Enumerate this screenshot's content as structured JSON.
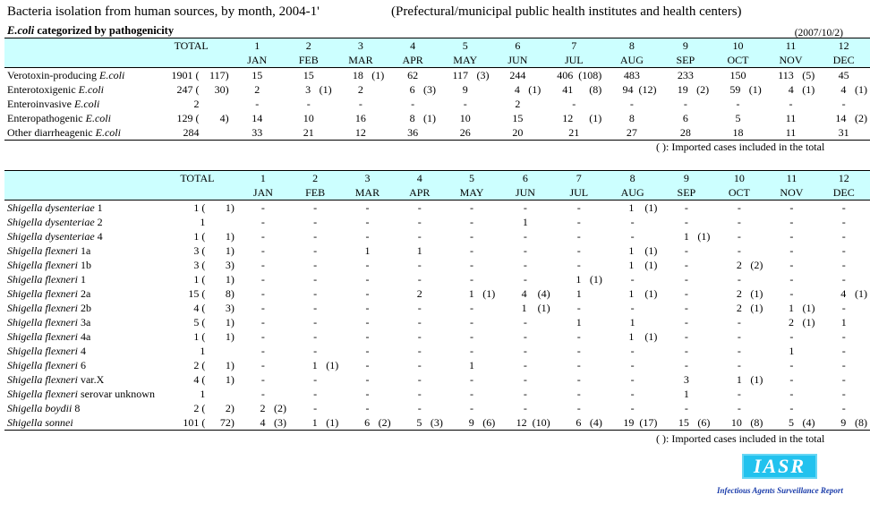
{
  "title": "Bacteria isolation from human sources, by month, 2004-1'",
  "subtitle": "(Prefectural/municipal public health institutes and health centers)",
  "ecoli_heading": {
    "italic": "E.coli",
    "rest": " categorized by pathogenicity"
  },
  "date": "(2007/10/2)",
  "header": {
    "total": "TOTAL",
    "months": [
      {
        "num": "1",
        "abbr": "JAN"
      },
      {
        "num": "2",
        "abbr": "FEB"
      },
      {
        "num": "3",
        "abbr": "MAR"
      },
      {
        "num": "4",
        "abbr": "APR"
      },
      {
        "num": "5",
        "abbr": "MAY"
      },
      {
        "num": "6",
        "abbr": "JUN"
      },
      {
        "num": "7",
        "abbr": "JUL"
      },
      {
        "num": "8",
        "abbr": "AUG"
      },
      {
        "num": "9",
        "abbr": "SEP"
      },
      {
        "num": "10",
        "abbr": "OCT"
      },
      {
        "num": "11",
        "abbr": "NOV"
      },
      {
        "num": "12",
        "abbr": "DEC"
      }
    ]
  },
  "ecoli_rows": [
    {
      "plain": "Verotoxin-producing ",
      "italic": "E.coli",
      "total": "1901",
      "imp": "117",
      "cells": [
        [
          "15",
          ""
        ],
        [
          "15",
          ""
        ],
        [
          "18",
          "1"
        ],
        [
          "62",
          ""
        ],
        [
          "117",
          "3"
        ],
        [
          "244",
          ""
        ],
        [
          "406",
          "108"
        ],
        [
          "483",
          ""
        ],
        [
          "233",
          ""
        ],
        [
          "150",
          ""
        ],
        [
          "113",
          "5"
        ],
        [
          "45",
          ""
        ]
      ]
    },
    {
      "plain": "Enterotoxigenic ",
      "italic": "E.coli",
      "total": "247",
      "imp": "30",
      "cells": [
        [
          "2",
          ""
        ],
        [
          "3",
          "1"
        ],
        [
          "2",
          ""
        ],
        [
          "6",
          "3"
        ],
        [
          "9",
          ""
        ],
        [
          "4",
          "1"
        ],
        [
          "41",
          "8"
        ],
        [
          "94",
          "12"
        ],
        [
          "19",
          "2"
        ],
        [
          "59",
          "1"
        ],
        [
          "4",
          "1"
        ],
        [
          "4",
          "1"
        ]
      ]
    },
    {
      "plain": "Enteroinvasive ",
      "italic": "E.coli",
      "total": "2",
      "imp": "",
      "cells": [
        [
          "-",
          ""
        ],
        [
          "-",
          ""
        ],
        [
          "-",
          ""
        ],
        [
          "-",
          ""
        ],
        [
          "-",
          ""
        ],
        [
          "2",
          ""
        ],
        [
          "-",
          ""
        ],
        [
          "-",
          ""
        ],
        [
          "-",
          ""
        ],
        [
          "-",
          ""
        ],
        [
          "-",
          ""
        ],
        [
          "-",
          ""
        ]
      ]
    },
    {
      "plain": "Enteropathogenic ",
      "italic": "E.coli",
      "total": "129",
      "imp": "4",
      "cells": [
        [
          "14",
          ""
        ],
        [
          "10",
          ""
        ],
        [
          "16",
          ""
        ],
        [
          "8",
          "1"
        ],
        [
          "10",
          ""
        ],
        [
          "15",
          ""
        ],
        [
          "12",
          "1"
        ],
        [
          "8",
          ""
        ],
        [
          "6",
          ""
        ],
        [
          "5",
          ""
        ],
        [
          "11",
          ""
        ],
        [
          "14",
          "2"
        ]
      ]
    },
    {
      "plain": "Other diarrheagenic ",
      "italic": "E.coli",
      "total": "284",
      "imp": "",
      "cells": [
        [
          "33",
          ""
        ],
        [
          "21",
          ""
        ],
        [
          "12",
          ""
        ],
        [
          "36",
          ""
        ],
        [
          "26",
          ""
        ],
        [
          "20",
          ""
        ],
        [
          "21",
          ""
        ],
        [
          "27",
          ""
        ],
        [
          "28",
          ""
        ],
        [
          "18",
          ""
        ],
        [
          "11",
          ""
        ],
        [
          "31",
          ""
        ]
      ]
    }
  ],
  "footnote": "(   ): Imported cases included in the total",
  "shigella_rows": [
    {
      "italic": "Shigella dysenteriae",
      "plain": " 1",
      "total": "1",
      "imp": "1",
      "cells": [
        [
          "-",
          ""
        ],
        [
          "-",
          ""
        ],
        [
          "-",
          ""
        ],
        [
          "-",
          ""
        ],
        [
          "-",
          ""
        ],
        [
          "-",
          ""
        ],
        [
          "-",
          ""
        ],
        [
          "1",
          "1"
        ],
        [
          "-",
          ""
        ],
        [
          "-",
          ""
        ],
        [
          "-",
          ""
        ],
        [
          "-",
          ""
        ]
      ]
    },
    {
      "italic": "Shigella dysenteriae",
      "plain": " 2",
      "total": "1",
      "imp": "",
      "cells": [
        [
          "-",
          ""
        ],
        [
          "-",
          ""
        ],
        [
          "-",
          ""
        ],
        [
          "-",
          ""
        ],
        [
          "-",
          ""
        ],
        [
          "1",
          ""
        ],
        [
          "-",
          ""
        ],
        [
          "-",
          ""
        ],
        [
          "-",
          ""
        ],
        [
          "-",
          ""
        ],
        [
          "-",
          ""
        ],
        [
          "-",
          ""
        ]
      ]
    },
    {
      "italic": "Shigella dysenteriae",
      "plain": " 4",
      "total": "1",
      "imp": "1",
      "cells": [
        [
          "-",
          ""
        ],
        [
          "-",
          ""
        ],
        [
          "-",
          ""
        ],
        [
          "-",
          ""
        ],
        [
          "-",
          ""
        ],
        [
          "-",
          ""
        ],
        [
          "-",
          ""
        ],
        [
          "-",
          ""
        ],
        [
          "1",
          "1"
        ],
        [
          "-",
          ""
        ],
        [
          "-",
          ""
        ],
        [
          "-",
          ""
        ]
      ]
    },
    {
      "italic": "Shigella flexneri",
      "plain": " 1a",
      "total": "3",
      "imp": "1",
      "cells": [
        [
          "-",
          ""
        ],
        [
          "-",
          ""
        ],
        [
          "1",
          ""
        ],
        [
          "1",
          ""
        ],
        [
          "-",
          ""
        ],
        [
          "-",
          ""
        ],
        [
          "-",
          ""
        ],
        [
          "1",
          "1"
        ],
        [
          "-",
          ""
        ],
        [
          "-",
          ""
        ],
        [
          "-",
          ""
        ],
        [
          "-",
          ""
        ]
      ]
    },
    {
      "italic": "Shigella flexneri",
      "plain": " 1b",
      "total": "3",
      "imp": "3",
      "cells": [
        [
          "-",
          ""
        ],
        [
          "-",
          ""
        ],
        [
          "-",
          ""
        ],
        [
          "-",
          ""
        ],
        [
          "-",
          ""
        ],
        [
          "-",
          ""
        ],
        [
          "-",
          ""
        ],
        [
          "1",
          "1"
        ],
        [
          "-",
          ""
        ],
        [
          "2",
          "2"
        ],
        [
          "-",
          ""
        ],
        [
          "-",
          ""
        ]
      ]
    },
    {
      "italic": "Shigella flexneri",
      "plain": " 1",
      "total": "1",
      "imp": "1",
      "cells": [
        [
          "-",
          ""
        ],
        [
          "-",
          ""
        ],
        [
          "-",
          ""
        ],
        [
          "-",
          ""
        ],
        [
          "-",
          ""
        ],
        [
          "-",
          ""
        ],
        [
          "1",
          "1"
        ],
        [
          "-",
          ""
        ],
        [
          "-",
          ""
        ],
        [
          "-",
          ""
        ],
        [
          "-",
          ""
        ],
        [
          "-",
          ""
        ]
      ]
    },
    {
      "italic": "Shigella flexneri",
      "plain": " 2a",
      "total": "15",
      "imp": "8",
      "cells": [
        [
          "-",
          ""
        ],
        [
          "-",
          ""
        ],
        [
          "-",
          ""
        ],
        [
          "2",
          ""
        ],
        [
          "1",
          "1"
        ],
        [
          "4",
          "4"
        ],
        [
          "1",
          ""
        ],
        [
          "1",
          "1"
        ],
        [
          "-",
          ""
        ],
        [
          "2",
          "1"
        ],
        [
          "-",
          ""
        ],
        [
          "4",
          "1"
        ]
      ]
    },
    {
      "italic": "Shigella flexneri",
      "plain": " 2b",
      "total": "4",
      "imp": "3",
      "cells": [
        [
          "-",
          ""
        ],
        [
          "-",
          ""
        ],
        [
          "-",
          ""
        ],
        [
          "-",
          ""
        ],
        [
          "-",
          ""
        ],
        [
          "1",
          "1"
        ],
        [
          "-",
          ""
        ],
        [
          "-",
          ""
        ],
        [
          "-",
          ""
        ],
        [
          "2",
          "1"
        ],
        [
          "1",
          "1"
        ],
        [
          "-",
          ""
        ]
      ]
    },
    {
      "italic": "Shigella flexneri",
      "plain": " 3a",
      "total": "5",
      "imp": "1",
      "cells": [
        [
          "-",
          ""
        ],
        [
          "-",
          ""
        ],
        [
          "-",
          ""
        ],
        [
          "-",
          ""
        ],
        [
          "-",
          ""
        ],
        [
          "-",
          ""
        ],
        [
          "1",
          ""
        ],
        [
          "1",
          ""
        ],
        [
          "-",
          ""
        ],
        [
          "-",
          ""
        ],
        [
          "2",
          "1"
        ],
        [
          "1",
          ""
        ]
      ]
    },
    {
      "italic": "Shigella flexneri",
      "plain": " 4a",
      "total": "1",
      "imp": "1",
      "cells": [
        [
          "-",
          ""
        ],
        [
          "-",
          ""
        ],
        [
          "-",
          ""
        ],
        [
          "-",
          ""
        ],
        [
          "-",
          ""
        ],
        [
          "-",
          ""
        ],
        [
          "-",
          ""
        ],
        [
          "1",
          "1"
        ],
        [
          "-",
          ""
        ],
        [
          "-",
          ""
        ],
        [
          "-",
          ""
        ],
        [
          "-",
          ""
        ]
      ]
    },
    {
      "italic": "Shigella flexneri",
      "plain": " 4",
      "total": "1",
      "imp": "",
      "cells": [
        [
          "-",
          ""
        ],
        [
          "-",
          ""
        ],
        [
          "-",
          ""
        ],
        [
          "-",
          ""
        ],
        [
          "-",
          ""
        ],
        [
          "-",
          ""
        ],
        [
          "-",
          ""
        ],
        [
          "-",
          ""
        ],
        [
          "-",
          ""
        ],
        [
          "-",
          ""
        ],
        [
          "1",
          ""
        ],
        [
          "-",
          ""
        ]
      ]
    },
    {
      "italic": "Shigella flexneri",
      "plain": " 6",
      "total": "2",
      "imp": "1",
      "cells": [
        [
          "-",
          ""
        ],
        [
          "1",
          "1"
        ],
        [
          "-",
          ""
        ],
        [
          "-",
          ""
        ],
        [
          "1",
          ""
        ],
        [
          "-",
          ""
        ],
        [
          "-",
          ""
        ],
        [
          "-",
          ""
        ],
        [
          "-",
          ""
        ],
        [
          "-",
          ""
        ],
        [
          "-",
          ""
        ],
        [
          "-",
          ""
        ]
      ]
    },
    {
      "italic": "Shigella flexneri",
      "plain": " var.X",
      "total": "4",
      "imp": "1",
      "cells": [
        [
          "-",
          ""
        ],
        [
          "-",
          ""
        ],
        [
          "-",
          ""
        ],
        [
          "-",
          ""
        ],
        [
          "-",
          ""
        ],
        [
          "-",
          ""
        ],
        [
          "-",
          ""
        ],
        [
          "-",
          ""
        ],
        [
          "3",
          ""
        ],
        [
          "1",
          "1"
        ],
        [
          "-",
          ""
        ],
        [
          "-",
          ""
        ]
      ]
    },
    {
      "italic": "Shigella flexneri",
      "plain": " serovar unknown",
      "total": "1",
      "imp": "",
      "cells": [
        [
          "-",
          ""
        ],
        [
          "-",
          ""
        ],
        [
          "-",
          ""
        ],
        [
          "-",
          ""
        ],
        [
          "-",
          ""
        ],
        [
          "-",
          ""
        ],
        [
          "-",
          ""
        ],
        [
          "-",
          ""
        ],
        [
          "1",
          ""
        ],
        [
          "-",
          ""
        ],
        [
          "-",
          ""
        ],
        [
          "-",
          ""
        ]
      ]
    },
    {
      "italic": "Shigella boydii",
      "plain": " 8",
      "total": "2",
      "imp": "2",
      "cells": [
        [
          "2",
          "2"
        ],
        [
          "-",
          ""
        ],
        [
          "-",
          ""
        ],
        [
          "-",
          ""
        ],
        [
          "-",
          ""
        ],
        [
          "-",
          ""
        ],
        [
          "-",
          ""
        ],
        [
          "-",
          ""
        ],
        [
          "-",
          ""
        ],
        [
          "-",
          ""
        ],
        [
          "-",
          ""
        ],
        [
          "-",
          ""
        ]
      ]
    },
    {
      "italic": "Shigella sonnei",
      "plain": "",
      "total": "101",
      "imp": "72",
      "cells": [
        [
          "4",
          "3"
        ],
        [
          "1",
          "1"
        ],
        [
          "6",
          "2"
        ],
        [
          "5",
          "3"
        ],
        [
          "9",
          "6"
        ],
        [
          "12",
          "10"
        ],
        [
          "6",
          "4"
        ],
        [
          "19",
          "17"
        ],
        [
          "15",
          "6"
        ],
        [
          "10",
          "8"
        ],
        [
          "5",
          "4"
        ],
        [
          "9",
          "8"
        ]
      ]
    }
  ],
  "logo": {
    "text": "IASR",
    "caption": "Infectious Agents Surveillance Report"
  }
}
